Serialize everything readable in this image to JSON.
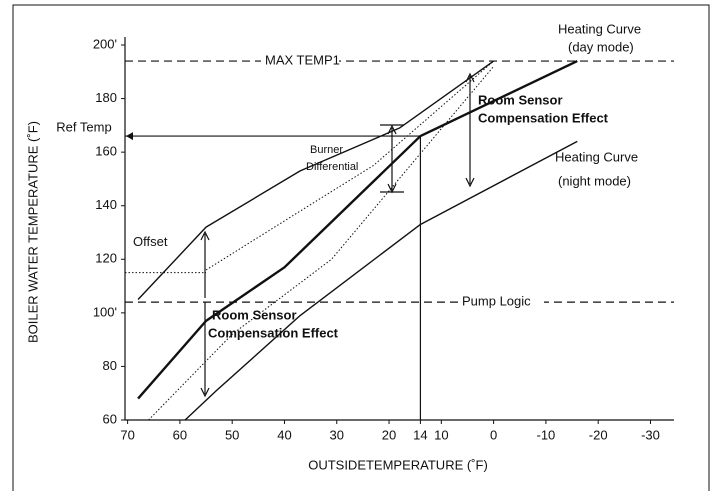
{
  "chart_data": {
    "type": "line",
    "y_label": "BOILER WATER TEMPERATURE (˚F)",
    "x_label": "OUTSIDETEMPERATURE (˚F)",
    "xlim": [
      70.5,
      -34.5
    ],
    "ylim": [
      60,
      200
    ],
    "xticks": [
      70,
      60,
      50,
      40,
      30,
      20,
      14,
      10,
      0,
      -10,
      -20,
      -30
    ],
    "yticks": [
      60,
      80,
      {
        "value": 100,
        "label": "100'"
      },
      120,
      140,
      160,
      180,
      {
        "value": 200,
        "label": "200'"
      }
    ],
    "series": [
      {
        "color": "#111",
        "style": "solid",
        "width": 1.4,
        "x": [
          68,
          55,
          37,
          18,
          0
        ],
        "values": [
          105,
          132,
          153,
          169,
          194
        ]
      },
      {
        "color": "#111",
        "style": "dotted",
        "width": 1,
        "x": [
          55,
          37,
          23,
          0
        ],
        "values": [
          116,
          138,
          155,
          194
        ]
      },
      {
        "color": "#111",
        "style": "solid",
        "width": 2.4,
        "x": [
          68,
          55,
          40,
          14,
          -16
        ],
        "values": [
          68,
          97,
          117,
          166,
          194
        ]
      },
      {
        "color": "#111",
        "style": "dotted",
        "width": 1,
        "x": [
          66,
          50,
          31,
          0
        ],
        "values": [
          60,
          92,
          120,
          192
        ]
      },
      {
        "color": "#111",
        "style": "solid",
        "width": 1.4,
        "x": [
          59,
          53,
          37,
          14,
          -16
        ],
        "values": [
          60,
          71,
          99,
          133,
          164
        ]
      }
    ],
    "reference_lines": [
      {
        "label": "MAX TEMP1",
        "y": 194,
        "style": "dashed"
      },
      {
        "label": "Pump Logic",
        "y": 104,
        "style": "dashed"
      },
      {
        "label": "Ref Temp",
        "y": 166,
        "x": 14,
        "style": "solid"
      },
      {
        "label": "Offset",
        "y": 115,
        "x": 55,
        "style": "dotted"
      }
    ],
    "annotations": [
      "Heating Curve",
      "(day mode)",
      "Room Sensor",
      "Compensation Effect",
      "Heating Curve",
      "(night mode)",
      "Burner",
      "Differential",
      "Room Sensor",
      "Compensation Effect"
    ]
  }
}
